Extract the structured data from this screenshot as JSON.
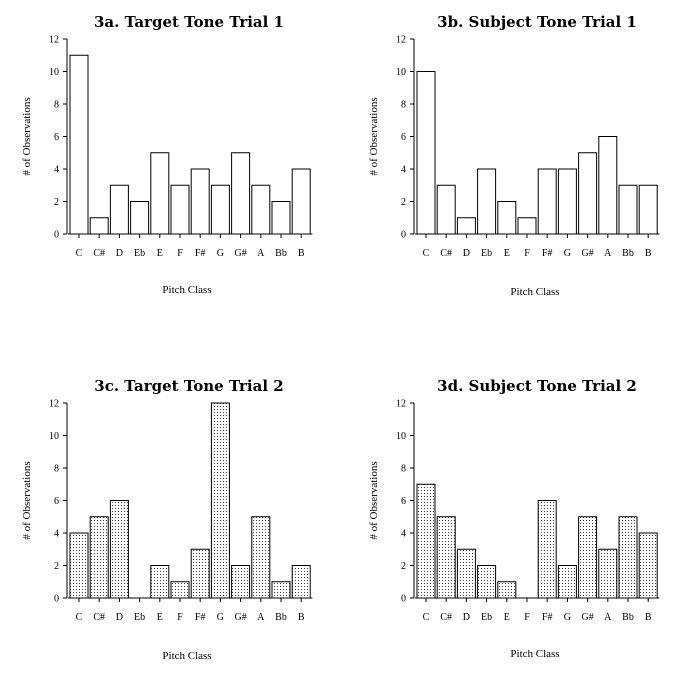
{
  "chart_data": [
    {
      "type": "bar",
      "title": "3a. Target Tone Trial 1",
      "xlabel": "Pitch Class",
      "ylabel": "# of Observations",
      "categories": [
        "C",
        "C#",
        "D",
        "Eb",
        "E",
        "F",
        "F#",
        "G",
        "G#",
        "A",
        "Bb",
        "B"
      ],
      "values": [
        11,
        1,
        3,
        2,
        5,
        3,
        4,
        3,
        5,
        3,
        2,
        4
      ],
      "ylim": [
        0,
        12
      ],
      "yticks": [
        "0",
        "2",
        "4",
        "6",
        "8",
        "10",
        "12"
      ],
      "fill": "plain",
      "grid": false
    },
    {
      "type": "bar",
      "title": "3b. Subject Tone Trial 1",
      "xlabel": "Pitch Class",
      "ylabel": "# of Observations",
      "categories": [
        "C",
        "C#",
        "D",
        "Eb",
        "E",
        "F",
        "F#",
        "G",
        "G#",
        "A",
        "Bb",
        "B"
      ],
      "values": [
        10,
        3,
        1,
        4,
        2,
        1,
        4,
        4,
        5,
        6,
        3,
        3
      ],
      "ylim": [
        0,
        12
      ],
      "yticks": [
        "0",
        "2",
        "4",
        "6",
        "8",
        "10",
        "12"
      ],
      "fill": "plain",
      "grid": false
    },
    {
      "type": "bar",
      "title": "3c. Target Tone Trial 2",
      "xlabel": "Pitch Class",
      "ylabel": "# of Observations",
      "categories": [
        "C",
        "C#",
        "D",
        "Eb",
        "E",
        "F",
        "F#",
        "G",
        "G#",
        "A",
        "Bb",
        "B"
      ],
      "values": [
        4,
        5,
        6,
        0,
        2,
        1,
        3,
        12,
        2,
        5,
        1,
        2
      ],
      "ylim": [
        0,
        12
      ],
      "yticks": [
        "0",
        "2",
        "4",
        "6",
        "8",
        "10",
        "12"
      ],
      "fill": "dotted",
      "grid": false
    },
    {
      "type": "bar",
      "title": "3d. Subject Tone Trial 2",
      "xlabel": "Pitch Class",
      "ylabel": "# of Observations",
      "categories": [
        "C",
        "C#",
        "D",
        "Eb",
        "E",
        "F",
        "F#",
        "G",
        "G#",
        "A",
        "Bb",
        "B"
      ],
      "values": [
        7,
        5,
        3,
        2,
        1,
        0,
        6,
        2,
        5,
        3,
        5,
        4
      ],
      "ylim": [
        0,
        12
      ],
      "yticks": [
        "0",
        "2",
        "4",
        "6",
        "8",
        "10",
        "12"
      ],
      "fill": "dotted",
      "grid": false
    }
  ]
}
